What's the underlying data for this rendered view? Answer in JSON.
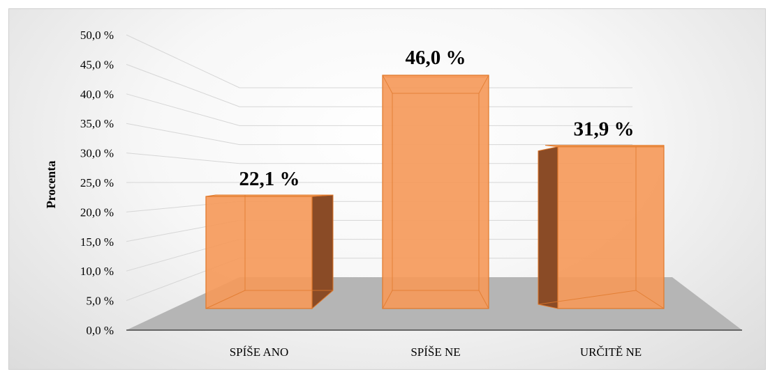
{
  "chart_data": {
    "type": "bar",
    "categories": [
      "SPÍŠE ANO",
      "SPÍŠE NE",
      "URČITĚ NE"
    ],
    "values": [
      22.1,
      46.0,
      31.9
    ],
    "data_labels": [
      "22,1 %",
      "46,0 %",
      "31,9 %"
    ],
    "ylabel": "Procenta",
    "ylim": [
      0,
      50
    ],
    "y_ticks": [
      "0,0 %",
      "5,0 %",
      "10,0 %",
      "15,0 %",
      "20,0 %",
      "25,0 %",
      "30,0 %",
      "35,0 %",
      "40,0 %",
      "45,0 %",
      "50,0 %"
    ],
    "grid": true,
    "three_d": true,
    "colors": {
      "bar_front": "#f59a5b",
      "bar_side": "#8a4b26",
      "bar_top": "#f7a766",
      "bar_edge": "#e0782a",
      "floor": "#b5b5b5",
      "grid": "#d6d6d6"
    }
  }
}
